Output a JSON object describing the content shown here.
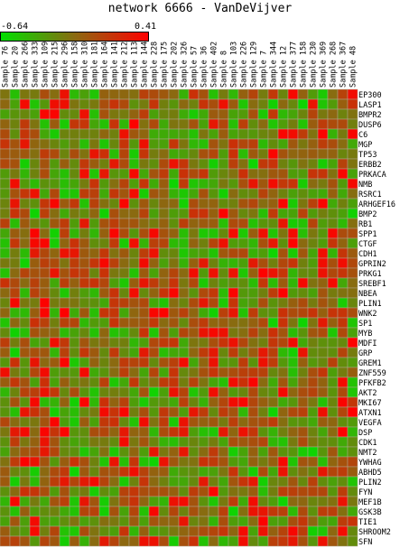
{
  "chart_data": {
    "type": "heatmap",
    "title": "network 6666 - VanDeVijver",
    "scale": {
      "min": "-0.64",
      "max": "0.41",
      "min_color": "#00e000",
      "mid_color": "#8a6a10",
      "max_color": "#ff0000"
    },
    "samples": [
      "Sample 76",
      "Sample 20",
      "Sample 266",
      "Sample 333",
      "Sample 109",
      "Sample 215",
      "Sample 296",
      "Sample 158",
      "Sample 310",
      "Sample 181",
      "Sample 164",
      "Sample 141",
      "Sample 212",
      "Sample 113",
      "Sample 144",
      "Sample 228",
      "Sample 175",
      "Sample 202",
      "Sample 326",
      "Sample 57",
      "Sample 36",
      "Sample 402",
      "Sample 8",
      "Sample 103",
      "Sample 226",
      "Sample 129",
      "Sample 7",
      "Sample 344",
      "Sample 12",
      "Sample 377",
      "Sample 158",
      "Sample 230",
      "Sample 369",
      "Sample 268",
      "Sample 367",
      "Sample 48"
    ],
    "genes": [
      "EP300",
      "LASP1",
      "BMPR2",
      "DUSP6",
      "C6",
      "MGP",
      "TP53",
      "ERBB2",
      "PRKACA",
      "NMB",
      "RSRC1",
      "ARHGEF16",
      "BMP2",
      "RB1",
      "SPP1",
      "CTGF",
      "CDH1",
      "GPRIN2",
      "PRKG1",
      "SREBF1",
      "NBEA",
      "PLIN1",
      "WNK2",
      "SP1",
      "MYB",
      "MDFI",
      "GRP",
      "GREM1",
      "ZNF559",
      "PFKFB2",
      "AKT2",
      "MKI67",
      "ATXN1",
      "VEGFA",
      "DSP",
      "CDK1",
      "NMT2",
      "YWHAG",
      "ABHD5",
      "PLIN2",
      "FYN",
      "MEF1B",
      "GSK3B",
      "TIE1",
      "SHROOM2",
      "SFN"
    ]
  }
}
